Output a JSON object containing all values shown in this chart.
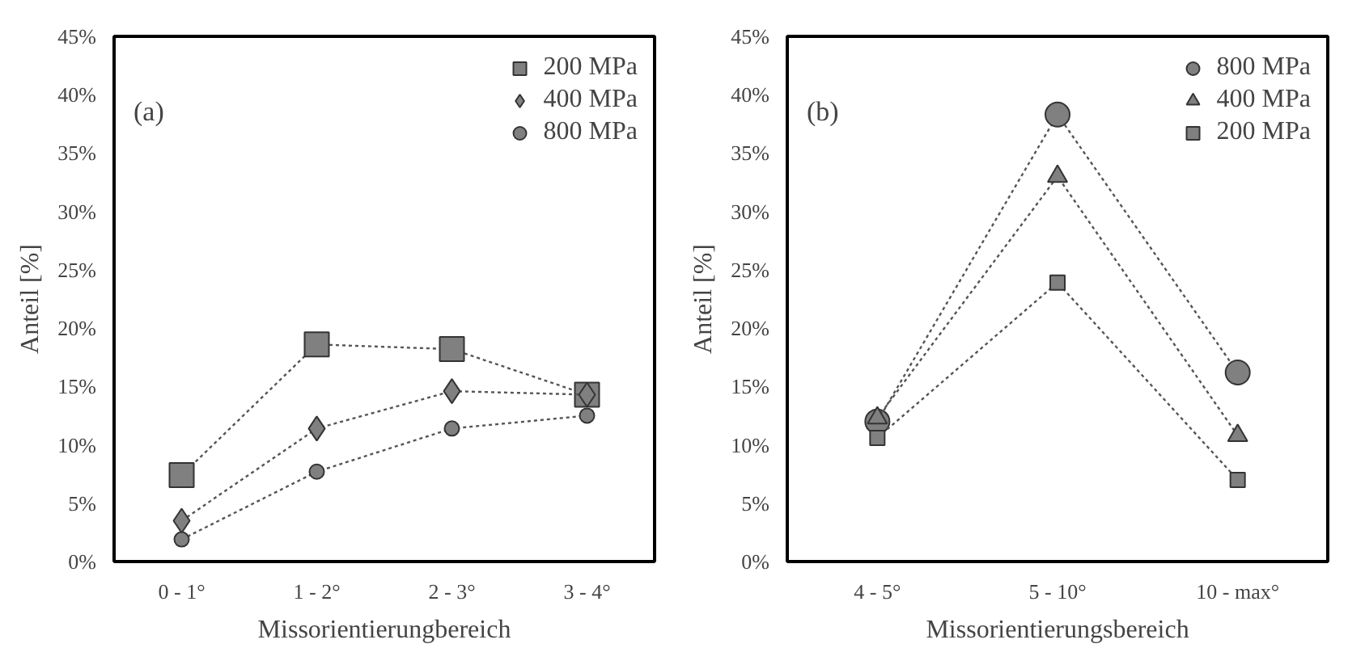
{
  "chart_data": [
    {
      "type": "line",
      "annotations": [
        "(a)"
      ],
      "xlabel": "Missorientierungbereich",
      "ylabel": "Anteil [%]",
      "categories": [
        "0 - 1°",
        "1 - 2°",
        "2 - 3°",
        "3 - 4°"
      ],
      "series": [
        {
          "name": "200 MPa",
          "color": "#808080",
          "marker": "square",
          "values": [
            7.4,
            18.6,
            18.2,
            14.3
          ]
        },
        {
          "name": "400 MPa",
          "color": "#808080",
          "marker": "diamond",
          "values": [
            3.5,
            11.4,
            14.6,
            14.3
          ]
        },
        {
          "name": "800 MPa",
          "color": "#808080",
          "marker": "circle",
          "values": [
            1.9,
            7.7,
            11.4,
            12.5
          ]
        }
      ],
      "ylim": [
        0,
        45
      ],
      "yticks": [
        {
          "value": 0,
          "label": "0%"
        },
        {
          "value": 5,
          "label": "5%"
        },
        {
          "value": 10,
          "label": "10%"
        },
        {
          "value": 15,
          "label": "15%"
        },
        {
          "value": 20,
          "label": "20%"
        },
        {
          "value": 25,
          "label": "25%"
        },
        {
          "value": 30,
          "label": "30%"
        },
        {
          "value": 35,
          "label": "35%"
        },
        {
          "value": 40,
          "label": "40%"
        },
        {
          "value": 45,
          "label": "45%"
        }
      ],
      "grid": false,
      "legend": "top right",
      "line_style": "dotted"
    },
    {
      "type": "line",
      "annotations": [
        "(b)"
      ],
      "xlabel": "Missorientierungsbereich",
      "ylabel": "Anteil [%]",
      "categories": [
        "4 - 5°",
        "5 - 10°",
        "10 - max°"
      ],
      "series": [
        {
          "name": "800 MPa",
          "color": "#808080",
          "marker": "circle",
          "values": [
            12.0,
            38.3,
            16.2
          ]
        },
        {
          "name": "400 MPa",
          "color": "#808080",
          "marker": "triangle",
          "values": [
            12.3,
            33.0,
            10.8
          ]
        },
        {
          "name": "200 MPa",
          "color": "#808080",
          "marker": "square",
          "values": [
            10.6,
            23.9,
            7.0
          ]
        }
      ],
      "ylim": [
        0,
        45
      ],
      "yticks": [
        {
          "value": 0,
          "label": "0%"
        },
        {
          "value": 5,
          "label": "5%"
        },
        {
          "value": 10,
          "label": "10%"
        },
        {
          "value": 15,
          "label": "15%"
        },
        {
          "value": 20,
          "label": "20%"
        },
        {
          "value": 25,
          "label": "25%"
        },
        {
          "value": 30,
          "label": "30%"
        },
        {
          "value": 35,
          "label": "35%"
        },
        {
          "value": 40,
          "label": "40%"
        },
        {
          "value": 45,
          "label": "45%"
        }
      ],
      "grid": false,
      "legend": "top right",
      "line_style": "dotted"
    }
  ]
}
